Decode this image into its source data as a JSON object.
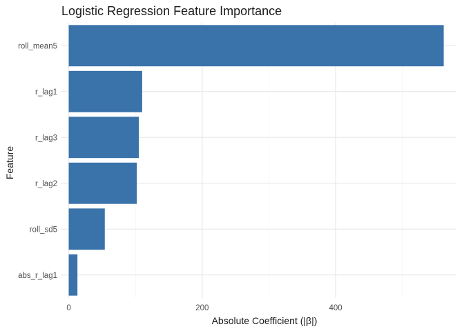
{
  "chart_data": {
    "type": "bar",
    "orientation": "horizontal",
    "title": "Logistic Regression Feature Importance",
    "xlabel": "Absolute Coefficient (|β|)",
    "ylabel": "Feature",
    "categories": [
      "roll_mean5",
      "r_lag1",
      "r_lag3",
      "r_lag2",
      "roll_sd5",
      "abs_r_lag1"
    ],
    "values": [
      562,
      110,
      105,
      102,
      54,
      13
    ],
    "x_ticks": [
      0,
      200,
      400
    ],
    "xlim": [
      -12,
      580
    ],
    "grid": true,
    "bar_color": "#3a72aa"
  }
}
